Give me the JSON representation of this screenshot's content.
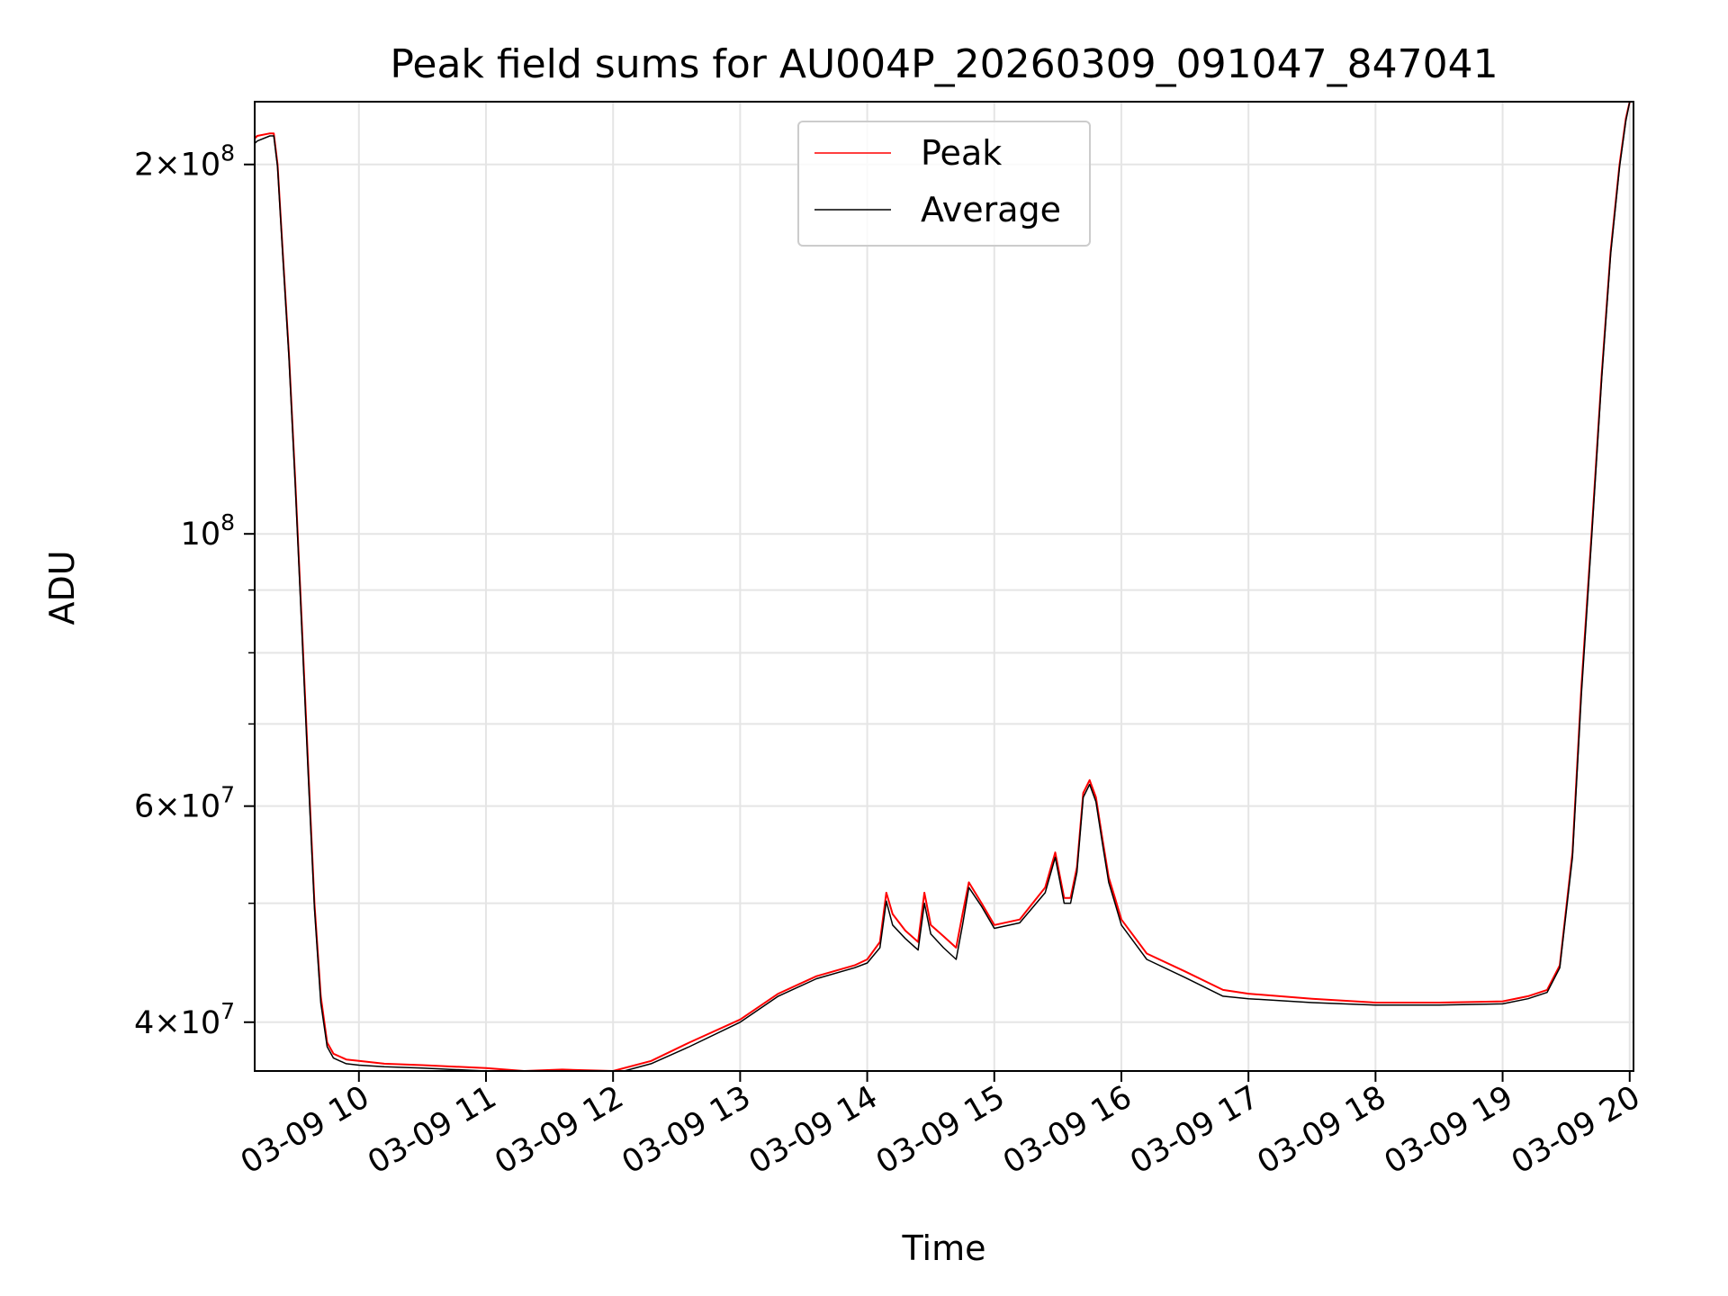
{
  "chart_data": {
    "type": "line",
    "title": "Peak field sums for AU004P_20260309_091047_847041",
    "xlabel": "Time",
    "ylabel": "ADU",
    "y_scale": "log",
    "ylim": [
      36500000,
      225000000
    ],
    "xlim": [
      9.18,
      20.03
    ],
    "grid": true,
    "legend_position": "top-center",
    "x_ticks": [
      {
        "value": 10,
        "label": "03-09 10"
      },
      {
        "value": 11,
        "label": "03-09 11"
      },
      {
        "value": 12,
        "label": "03-09 12"
      },
      {
        "value": 13,
        "label": "03-09 13"
      },
      {
        "value": 14,
        "label": "03-09 14"
      },
      {
        "value": 15,
        "label": "03-09 15"
      },
      {
        "value": 16,
        "label": "03-09 16"
      },
      {
        "value": 17,
        "label": "03-09 17"
      },
      {
        "value": 18,
        "label": "03-09 18"
      },
      {
        "value": 19,
        "label": "03-09 19"
      },
      {
        "value": 20,
        "label": "03-09 20"
      }
    ],
    "y_ticks": [
      {
        "value": 40000000,
        "mantissa": "4",
        "exponent": "7"
      },
      {
        "value": 60000000,
        "mantissa": "6",
        "exponent": "7"
      },
      {
        "value": 100000000,
        "mantissa": "",
        "exponent": "8"
      },
      {
        "value": 200000000,
        "mantissa": "2",
        "exponent": "8"
      }
    ],
    "y_minor_ticks": [
      50000000,
      70000000,
      80000000,
      90000000
    ],
    "x": [
      9.18,
      9.2,
      9.3,
      9.33,
      9.36,
      9.4,
      9.45,
      9.5,
      9.55,
      9.6,
      9.65,
      9.7,
      9.75,
      9.8,
      9.85,
      9.9,
      10.0,
      10.2,
      10.5,
      11.0,
      11.3,
      11.6,
      12.0,
      12.3,
      12.6,
      13.0,
      13.3,
      13.6,
      13.9,
      14.0,
      14.1,
      14.15,
      14.2,
      14.3,
      14.4,
      14.45,
      14.5,
      14.6,
      14.7,
      14.75,
      14.8,
      14.9,
      15.0,
      15.2,
      15.4,
      15.48,
      15.55,
      15.6,
      15.65,
      15.7,
      15.75,
      15.8,
      15.85,
      15.9,
      15.95,
      16.0,
      16.2,
      16.5,
      16.8,
      17.0,
      17.5,
      18.0,
      18.5,
      19.0,
      19.2,
      19.35,
      19.45,
      19.55,
      19.62,
      19.7,
      19.78,
      19.85,
      19.92,
      19.97,
      20.0
    ],
    "series": [
      {
        "name": "Peak",
        "color": "#ff0000",
        "values": [
          210000000,
          211000000,
          212000000,
          212000000,
          200000000,
          170000000,
          140000000,
          110000000,
          85000000,
          65000000,
          50000000,
          42000000,
          38500000,
          37700000,
          37500000,
          37300000,
          37200000,
          37000000,
          36900000,
          36700000,
          36500000,
          36600000,
          36500000,
          37200000,
          38500000,
          40200000,
          42200000,
          43600000,
          44500000,
          45000000,
          46500000,
          51000000,
          49000000,
          47500000,
          46500000,
          51000000,
          48000000,
          47000000,
          46000000,
          49000000,
          52000000,
          50000000,
          48000000,
          48500000,
          51500000,
          55000000,
          50500000,
          50500000,
          53500000,
          61500000,
          63000000,
          61000000,
          56500000,
          52500000,
          50500000,
          48500000,
          45500000,
          44000000,
          42500000,
          42200000,
          41800000,
          41500000,
          41500000,
          41600000,
          42000000,
          42500000,
          44500000,
          55000000,
          75000000,
          100000000,
          135000000,
          170000000,
          200000000,
          218000000,
          225000000
        ]
      },
      {
        "name": "Average",
        "color": "#000000",
        "values": [
          208000000,
          209000000,
          211000000,
          211000000,
          199000000,
          169000000,
          139000000,
          109000000,
          84000000,
          64000000,
          49500000,
          41500000,
          38200000,
          37400000,
          37200000,
          37000000,
          36900000,
          36800000,
          36700000,
          36500000,
          36200000,
          36300000,
          36300000,
          37000000,
          38200000,
          40000000,
          42000000,
          43400000,
          44300000,
          44700000,
          46000000,
          50200000,
          48000000,
          46800000,
          45800000,
          50000000,
          47200000,
          46000000,
          45000000,
          48000000,
          51500000,
          49700000,
          47700000,
          48200000,
          51000000,
          54500000,
          50000000,
          50000000,
          53000000,
          61000000,
          62500000,
          60500000,
          56000000,
          52000000,
          50000000,
          48000000,
          45000000,
          43500000,
          42000000,
          41800000,
          41500000,
          41300000,
          41300000,
          41400000,
          41800000,
          42300000,
          44300000,
          54500000,
          74000000,
          99000000,
          134000000,
          169000000,
          199000000,
          217000000,
          225000000
        ]
      }
    ]
  }
}
